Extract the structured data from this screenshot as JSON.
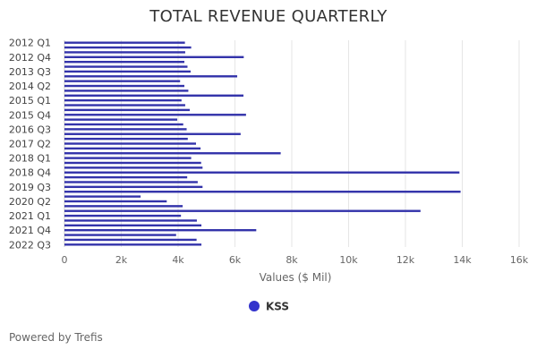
{
  "chart_data": {
    "type": "bar",
    "orientation": "horizontal",
    "title": "TOTAL REVENUE QUARTERLY",
    "xlabel": "Values ($ Mil)",
    "ylabel": "",
    "xlim": [
      0,
      16000
    ],
    "xticks": [
      0,
      2000,
      4000,
      6000,
      8000,
      10000,
      12000,
      14000,
      16000
    ],
    "xtick_labels": [
      "0",
      "2k",
      "4k",
      "6k",
      "8k",
      "10k",
      "12k",
      "14k",
      "16k"
    ],
    "grid": true,
    "legend_position": "bottom",
    "categories": [
      "2012 Q1",
      "2012 Q2",
      "2012 Q3",
      "2012 Q4",
      "2013 Q1",
      "2013 Q2",
      "2013 Q3",
      "2013 Q4",
      "2014 Q1",
      "2014 Q2",
      "2014 Q3",
      "2014 Q4",
      "2015 Q1",
      "2015 Q2",
      "2015 Q3",
      "2015 Q4",
      "2016 Q1",
      "2016 Q2",
      "2016 Q3",
      "2016 Q4",
      "2017 Q1",
      "2017 Q2",
      "2017 Q3",
      "2017 Q4",
      "2018 Q1",
      "2018 Q2",
      "2018 Q3",
      "2018 Q4",
      "2019 Q1",
      "2019 Q2",
      "2019 Q3",
      "2019 Q4",
      "2020 Q1",
      "2020 Q2",
      "2020 Q3",
      "2020 Q4",
      "2021 Q1",
      "2021 Q2",
      "2021 Q3",
      "2021 Q4",
      "2022 Q1",
      "2022 Q2",
      "2022 Q3"
    ],
    "visible_category_labels": [
      "2012 Q1",
      "2012 Q4",
      "2013 Q3",
      "2014 Q2",
      "2015 Q1",
      "2015 Q4",
      "2016 Q3",
      "2017 Q2",
      "2018 Q1",
      "2018 Q4",
      "2019 Q3",
      "2020 Q2",
      "2021 Q1",
      "2021 Q4",
      "2022 Q3"
    ],
    "series": [
      {
        "name": "KSS",
        "color": "#3333aa",
        "values": [
          4240,
          4460,
          4250,
          6310,
          4220,
          4330,
          4440,
          6080,
          4070,
          4220,
          4360,
          6300,
          4120,
          4250,
          4410,
          6390,
          3970,
          4180,
          4300,
          6200,
          4340,
          4630,
          4790,
          7610,
          4460,
          4810,
          4860,
          13900,
          4320,
          4690,
          4860,
          13940,
          2680,
          3600,
          4160,
          12530,
          4100,
          4660,
          4820,
          6750,
          3930,
          4650,
          4820
        ]
      }
    ]
  },
  "legend": {
    "label": "KSS",
    "color": "#3333cc"
  },
  "footer": {
    "credit": "Powered by Trefis"
  }
}
